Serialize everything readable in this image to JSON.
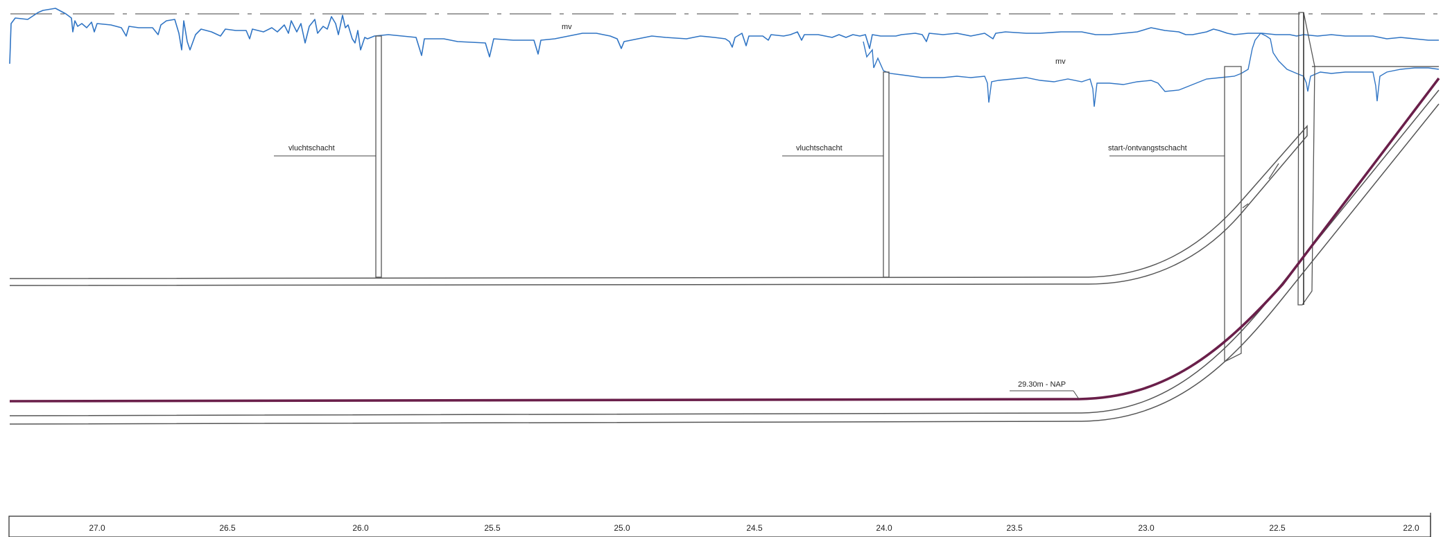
{
  "profile": {
    "surface_label_1": "mv",
    "surface_label_2": "mv",
    "shaft_1_label": "vluchtschacht",
    "shaft_2_label": "vluchtschacht",
    "shaft_3_label": "start-/ontvangstschacht",
    "depth_label": "29.30m - NAP",
    "chainage": [
      "27.0",
      "26.5",
      "26.0",
      "25.5",
      "25.0",
      "24.5",
      "24.0",
      "23.5",
      "23.0",
      "22.5",
      "22.0"
    ]
  },
  "colors": {
    "surface_line": "#2f74c4",
    "tunnel_axis": "#6a1f4a",
    "outline": "#555555",
    "centerline": "#666666"
  }
}
